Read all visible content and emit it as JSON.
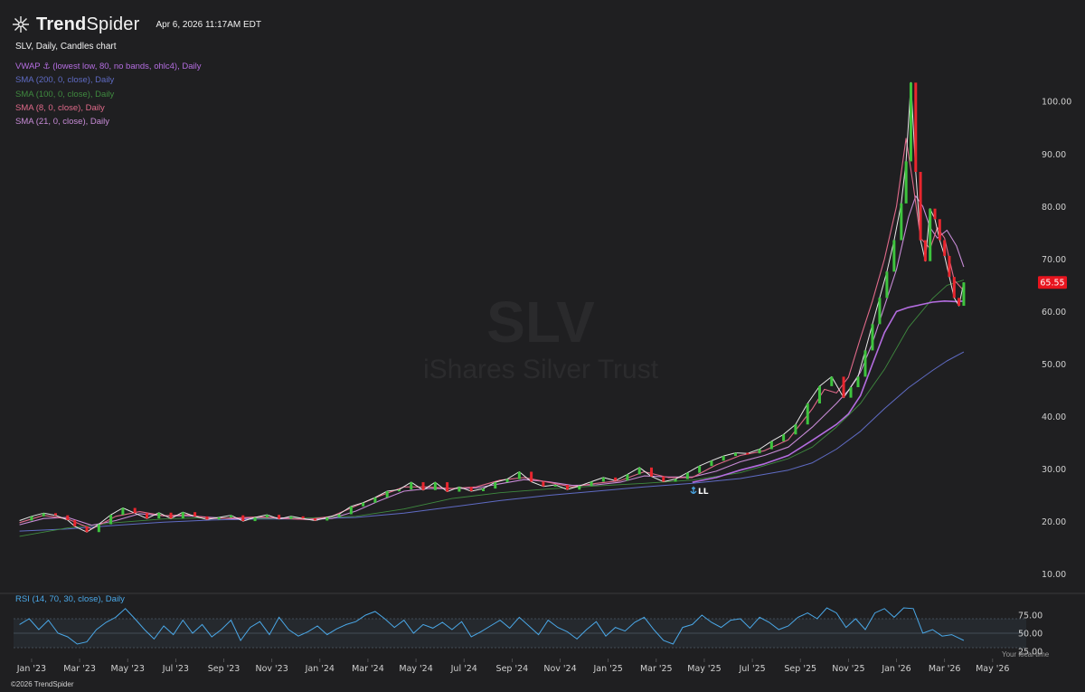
{
  "header": {
    "brand_prefix": "Trend",
    "brand_suffix": "Spider",
    "timestamp": "Apr 6, 2026 11:17AM EDT"
  },
  "chart_title": "SLV, Daily, Candles chart",
  "watermark": {
    "ticker": "SLV",
    "name": "iShares Silver Trust"
  },
  "indicators": [
    {
      "label": "VWAP ⚓ (lowest low, 80, no bands, ohlc4), Daily",
      "color": "#b46de0"
    },
    {
      "label": "SMA (200, 0, close), Daily",
      "color": "#5f6bc4"
    },
    {
      "label": "SMA (100, 0, close), Daily",
      "color": "#3f8a3f"
    },
    {
      "label": "SMA (8, 0, close), Daily",
      "color": "#e06a8a"
    },
    {
      "label": "SMA (21, 0, close), Daily",
      "color": "#c78bd6"
    }
  ],
  "price_badge": {
    "value": "65.55",
    "color": "#e8141e"
  },
  "anchor_marker": "LL",
  "rsi": {
    "label": "RSI (14, 70, 30, close), Daily",
    "color": "#4aa8e8",
    "ticks": [
      "75.00",
      "50.00",
      "25.00"
    ]
  },
  "local_time_label": "Your local time",
  "footer": "©2026 TrendSpider",
  "chart_data": {
    "type": "line",
    "title": "SLV, Daily, Candles chart",
    "y_ticks": [
      10,
      20,
      30,
      40,
      50,
      60,
      70,
      80,
      90,
      100
    ],
    "y_tick_labels": [
      "10.00",
      "20.00",
      "30.00",
      "40.00",
      "50.00",
      "60.00",
      "70.00",
      "80.00",
      "90.00",
      "100.00"
    ],
    "ylim": [
      6.5,
      109
    ],
    "x_labels": [
      "Jan '23",
      "Mar '23",
      "May '23",
      "Jul '23",
      "Sep '23",
      "Nov '23",
      "Jan '24",
      "Mar '24",
      "May '24",
      "Jul '24",
      "Sep '24",
      "Nov '24",
      "Jan '25",
      "Mar '25",
      "May '25",
      "Jul '25",
      "Sep '25",
      "Nov '25",
      "Jan '26",
      "Mar '26",
      "May '26"
    ],
    "x_months": [
      0.5,
      2.5,
      4.5,
      6.5,
      8.5,
      10.5,
      12.5,
      14.5,
      16.5,
      18.5,
      20.5,
      22.5,
      24.5,
      26.5,
      28.5,
      30.5,
      32.5,
      34.5,
      36.5,
      38.5,
      40.5
    ],
    "last_price": 65.55,
    "series": [
      {
        "name": "SLV",
        "color": "#e8e8e8",
        "x": [
          0.0,
          0.5,
          1.0,
          1.5,
          2.0,
          2.3,
          2.8,
          3.3,
          3.8,
          4.3,
          4.8,
          5.3,
          5.8,
          6.3,
          6.8,
          7.3,
          7.8,
          8.3,
          8.8,
          9.3,
          9.8,
          10.3,
          10.8,
          11.3,
          11.8,
          12.3,
          12.8,
          13.3,
          13.8,
          14.3,
          14.8,
          15.3,
          15.8,
          16.3,
          16.8,
          17.3,
          17.8,
          18.3,
          18.8,
          19.3,
          19.8,
          20.3,
          20.8,
          21.3,
          21.8,
          22.3,
          22.8,
          23.3,
          23.8,
          24.3,
          24.8,
          25.3,
          25.8,
          26.3,
          26.8,
          27.3,
          27.8,
          28.3,
          28.8,
          29.3,
          29.8,
          30.3,
          30.8,
          31.3,
          31.8,
          32.3,
          32.8,
          33.3,
          33.8,
          34.3,
          34.6,
          34.9,
          35.2,
          35.5,
          35.8,
          36.1,
          36.4,
          36.7,
          36.9,
          37.1,
          37.3,
          37.5,
          37.7,
          37.9,
          38.1,
          38.3,
          38.5,
          38.7,
          38.9,
          39.1,
          39.3
        ],
        "y": [
          20.2,
          21.0,
          21.6,
          21.2,
          20.3,
          19.1,
          18.0,
          19.5,
          21.3,
          22.6,
          21.6,
          20.6,
          21.7,
          20.6,
          21.8,
          21.0,
          20.4,
          20.8,
          21.2,
          20.1,
          20.8,
          21.3,
          20.5,
          21.0,
          20.6,
          20.2,
          20.8,
          21.4,
          22.9,
          23.6,
          24.6,
          25.8,
          26.1,
          27.5,
          26.0,
          27.5,
          25.7,
          26.6,
          25.8,
          26.3,
          27.5,
          28.1,
          29.5,
          27.6,
          26.7,
          27.0,
          26.1,
          26.8,
          27.6,
          28.4,
          27.8,
          29.0,
          30.3,
          28.6,
          27.6,
          28.1,
          29.3,
          30.6,
          31.6,
          32.5,
          33.1,
          33.0,
          33.8,
          35.3,
          36.6,
          38.5,
          42.5,
          45.8,
          47.6,
          43.6,
          45.6,
          47.6,
          52.6,
          57.6,
          62.6,
          67.6,
          73.6,
          80.6,
          88.6,
          103.6,
          86.6,
          73.6,
          69.6,
          79.6,
          77.6,
          73.6,
          70.6,
          66.6,
          62.6,
          61.1,
          65.55
        ]
      },
      {
        "name": "SMA (8, 0, close), Daily",
        "color": "#e06a8a",
        "x": [
          0.0,
          1.0,
          2.0,
          3.0,
          4.0,
          5.0,
          6.0,
          7.0,
          8.0,
          9.0,
          10.0,
          11.0,
          12.0,
          13.0,
          14.0,
          15.0,
          16.0,
          17.0,
          18.0,
          19.0,
          20.0,
          21.0,
          22.0,
          23.0,
          24.0,
          25.0,
          26.0,
          27.0,
          28.0,
          29.0,
          30.0,
          31.0,
          32.0,
          33.0,
          33.5,
          34.0,
          34.5,
          35.0,
          35.5,
          36.0,
          36.5,
          36.9,
          37.2,
          37.5,
          37.9,
          38.2,
          38.5,
          38.9,
          39.3
        ],
        "y": [
          19.8,
          21.2,
          20.5,
          18.6,
          21.0,
          21.9,
          21.1,
          21.3,
          20.6,
          20.7,
          20.9,
          20.6,
          20.4,
          21.0,
          23.0,
          24.9,
          26.6,
          26.6,
          26.3,
          26.6,
          27.9,
          28.4,
          27.5,
          26.6,
          27.3,
          27.8,
          29.5,
          28.4,
          28.4,
          30.8,
          32.6,
          33.5,
          35.6,
          41.5,
          45.2,
          44.5,
          47.5,
          55.0,
          62.0,
          70.0,
          80.0,
          93.0,
          84.0,
          74.0,
          72.0,
          76.0,
          74.0,
          66.0,
          64.0
        ]
      },
      {
        "name": "SMA (21, 0, close), Daily",
        "color": "#c78bd6",
        "x": [
          0.0,
          1.0,
          2.0,
          3.0,
          4.0,
          5.0,
          6.0,
          7.0,
          8.0,
          9.0,
          10.0,
          11.0,
          12.0,
          13.0,
          14.0,
          15.0,
          16.0,
          17.0,
          18.0,
          19.0,
          20.0,
          21.0,
          22.0,
          23.0,
          24.0,
          25.0,
          26.0,
          27.0,
          28.0,
          29.0,
          30.0,
          31.0,
          32.0,
          33.0,
          34.0,
          34.5,
          35.0,
          35.5,
          36.0,
          36.5,
          37.0,
          37.3,
          37.6,
          37.9,
          38.2,
          38.6,
          39.0,
          39.3
        ],
        "y": [
          19.4,
          20.6,
          20.8,
          19.3,
          20.2,
          21.5,
          21.1,
          21.1,
          20.8,
          20.5,
          20.8,
          20.7,
          20.4,
          20.6,
          22.0,
          24.0,
          25.8,
          26.3,
          26.3,
          26.4,
          27.2,
          28.0,
          27.6,
          26.9,
          27.0,
          27.5,
          28.7,
          28.5,
          28.5,
          29.6,
          31.4,
          32.6,
          34.2,
          38.0,
          42.5,
          45.0,
          48.5,
          54.0,
          61.0,
          68.0,
          78.0,
          82.0,
          80.0,
          76.0,
          74.0,
          75.5,
          72.5,
          68.5
        ]
      },
      {
        "name": "SMA (100, 0, close), Daily",
        "color": "#3f8a3f",
        "x": [
          0.0,
          2.0,
          4.0,
          6.0,
          8.0,
          10.0,
          12.0,
          14.0,
          16.0,
          18.0,
          20.0,
          22.0,
          24.0,
          26.0,
          28.0,
          30.0,
          32.0,
          33.0,
          34.0,
          35.0,
          36.0,
          37.0,
          38.0,
          38.6,
          39.3
        ],
        "y": [
          17.2,
          18.8,
          19.8,
          20.5,
          20.8,
          20.6,
          20.7,
          21.0,
          22.4,
          24.4,
          25.5,
          26.2,
          26.8,
          27.3,
          27.9,
          29.3,
          32.0,
          34.2,
          38.0,
          42.5,
          49.0,
          57.0,
          62.5,
          65.0,
          66.0
        ]
      },
      {
        "name": "SMA (200, 0, close), Daily",
        "color": "#5f6bc4",
        "x": [
          0.0,
          2.0,
          4.0,
          6.0,
          8.0,
          10.0,
          12.0,
          14.0,
          16.0,
          18.0,
          20.0,
          22.0,
          24.0,
          26.0,
          28.0,
          30.0,
          32.0,
          33.0,
          34.0,
          35.0,
          36.0,
          37.0,
          38.0,
          38.6,
          39.3
        ],
        "y": [
          18.2,
          18.6,
          19.3,
          19.9,
          20.3,
          20.5,
          20.5,
          20.8,
          21.6,
          22.8,
          24.0,
          25.0,
          25.8,
          26.6,
          27.3,
          28.2,
          29.8,
          31.2,
          33.8,
          37.2,
          41.5,
          45.5,
          48.8,
          50.6,
          52.3
        ]
      },
      {
        "name": "VWAP ⚓ (lowest low, 80, no bands, ohlc4), Daily",
        "color": "#b46de0",
        "x": [
          28.0,
          29.0,
          30.0,
          31.0,
          32.0,
          33.0,
          34.0,
          34.5,
          35.0,
          35.5,
          36.0,
          36.5,
          37.0,
          37.5,
          38.0,
          38.5,
          39.0,
          39.3
        ],
        "y": [
          27.5,
          28.4,
          29.8,
          31.0,
          32.6,
          35.5,
          38.5,
          40.5,
          44.0,
          50.0,
          56.0,
          60.0,
          60.8,
          61.3,
          61.8,
          62.0,
          61.9,
          62.0
        ]
      }
    ],
    "rsi_series": {
      "name": "RSI (14, 70, 30, close), Daily",
      "color": "#4aa8e8",
      "ylim": [
        25,
        90
      ],
      "x": [
        0.0,
        0.4,
        0.8,
        1.2,
        1.6,
        2.0,
        2.4,
        2.8,
        3.2,
        3.6,
        4.0,
        4.4,
        4.8,
        5.2,
        5.6,
        6.0,
        6.4,
        6.8,
        7.2,
        7.6,
        8.0,
        8.4,
        8.8,
        9.2,
        9.6,
        10.0,
        10.4,
        10.8,
        11.2,
        11.6,
        12.0,
        12.4,
        12.8,
        13.2,
        13.6,
        14.0,
        14.4,
        14.8,
        15.2,
        15.6,
        16.0,
        16.4,
        16.8,
        17.2,
        17.6,
        18.0,
        18.4,
        18.8,
        19.2,
        19.6,
        20.0,
        20.4,
        20.8,
        21.2,
        21.6,
        22.0,
        22.4,
        22.8,
        23.2,
        23.6,
        24.0,
        24.4,
        24.8,
        25.2,
        25.6,
        26.0,
        26.4,
        26.8,
        27.2,
        27.6,
        28.0,
        28.4,
        28.8,
        29.2,
        29.6,
        30.0,
        30.4,
        30.8,
        31.2,
        31.6,
        32.0,
        32.4,
        32.8,
        33.2,
        33.6,
        34.0,
        34.4,
        34.8,
        35.2,
        35.6,
        36.0,
        36.4,
        36.8,
        37.2,
        37.6,
        38.0,
        38.4,
        38.8,
        39.3
      ],
      "y": [
        62,
        70,
        55,
        68,
        50,
        45,
        35,
        38,
        55,
        65,
        72,
        84,
        70,
        55,
        42,
        60,
        48,
        68,
        50,
        62,
        45,
        55,
        68,
        40,
        58,
        66,
        48,
        72,
        55,
        46,
        52,
        60,
        48,
        56,
        62,
        66,
        75,
        80,
        70,
        58,
        68,
        50,
        62,
        57,
        65,
        55,
        66,
        45,
        52,
        60,
        68,
        57,
        72,
        60,
        48,
        68,
        58,
        52,
        42,
        55,
        66,
        46,
        58,
        53,
        65,
        72,
        55,
        40,
        35,
        58,
        62,
        75,
        65,
        58,
        68,
        70,
        57,
        72,
        65,
        55,
        60,
        72,
        78,
        70,
        85,
        78,
        58,
        70,
        55,
        78,
        84,
        72,
        85,
        84,
        50,
        55,
        46,
        48,
        40
      ]
    }
  }
}
